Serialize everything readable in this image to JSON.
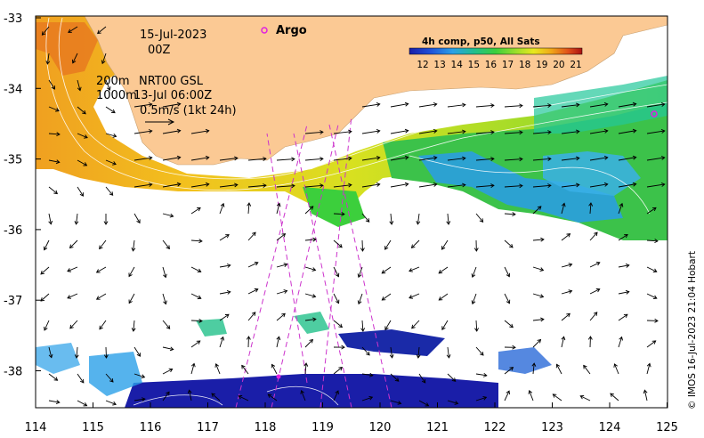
{
  "map": {
    "date_line1": "15-Jul-2023",
    "date_line2": "00Z",
    "depth_label_1": "200m",
    "depth_label_2": "1000m",
    "product": "NRT00 GSL",
    "product_time": "13-Jul 06:00Z",
    "scale_label": "0.5m/s (1kt 24h)",
    "argo_label": "Argo",
    "colorbar_title": "4h comp, p50, All Sats",
    "colorbar_ticks": [
      "12",
      "13",
      "14",
      "15",
      "16",
      "17",
      "18",
      "19",
      "20",
      "21"
    ],
    "side_credit": "© IMOS 16-Jul-2023 21:04 Hobart",
    "lat_labels": [
      "-33",
      "-34",
      "-35",
      "-36",
      "-37",
      "-38"
    ],
    "lon_labels": [
      "114",
      "115",
      "116",
      "117",
      "118",
      "119",
      "120",
      "121",
      "122",
      "123",
      "124",
      "125"
    ],
    "colors": {
      "land": "#fbc994",
      "argo": "#e020e0",
      "track": "#cc33cc"
    }
  }
}
